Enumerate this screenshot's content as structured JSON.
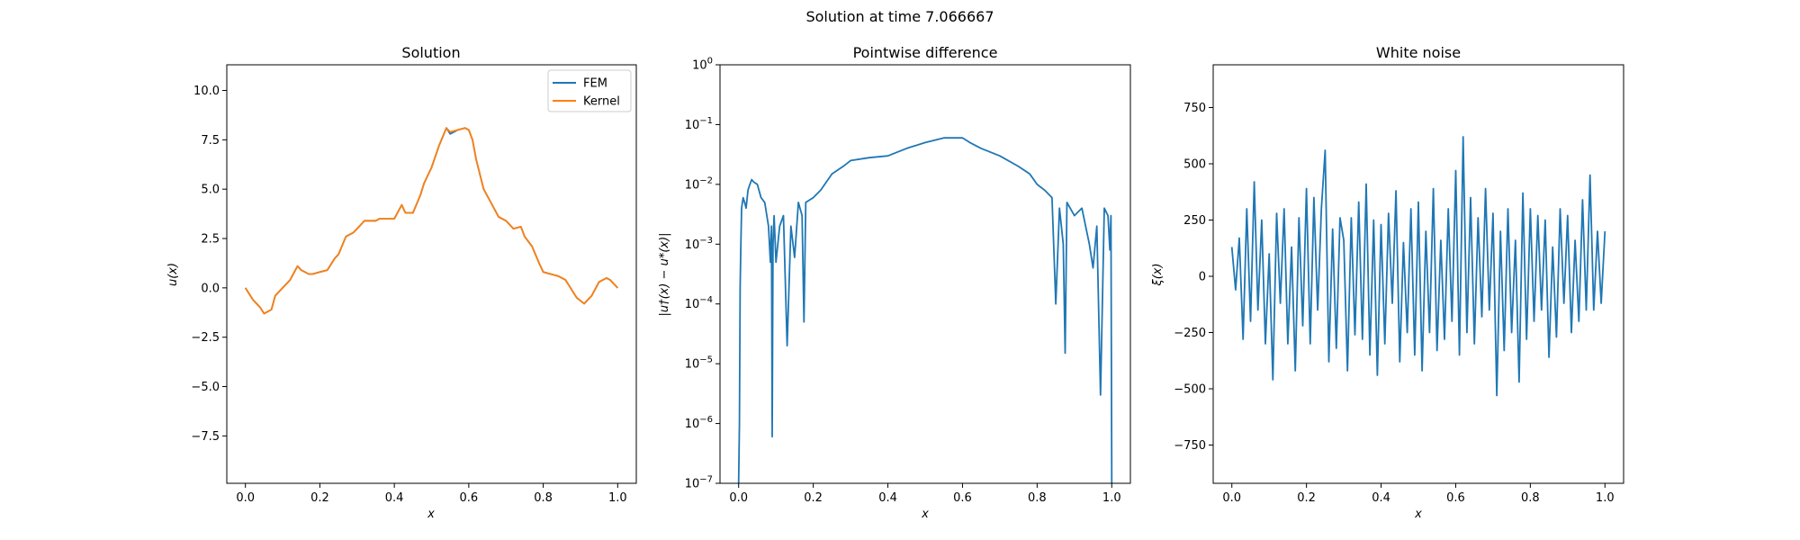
{
  "figure": {
    "suptitle": "Solution at time 7.066667"
  },
  "colors": {
    "fem": "#1f77b4",
    "kernel": "#ff7f0e",
    "axes": "#000000",
    "background": "#ffffff"
  },
  "chart_data": [
    {
      "type": "line",
      "title": "Solution",
      "xlabel": "x",
      "ylabel": "u(x)",
      "xlim": [
        -0.05,
        1.05
      ],
      "ylim": [
        -9.9,
        11.3
      ],
      "xticks": [
        0.0,
        0.2,
        0.4,
        0.6,
        0.8,
        1.0
      ],
      "xtick_labels": [
        "0.0",
        "0.2",
        "0.4",
        "0.6",
        "0.8",
        "1.0"
      ],
      "yticks": [
        -7.5,
        -5.0,
        -2.5,
        0.0,
        2.5,
        5.0,
        7.5,
        10.0
      ],
      "ytick_labels": [
        "−7.5",
        "−5.0",
        "−2.5",
        "0.0",
        "2.5",
        "5.0",
        "7.5",
        "10.0"
      ],
      "legend_position": "top-right",
      "grid": false,
      "series": [
        {
          "name": "FEM",
          "color": "#1f77b4",
          "x": [
            0.0,
            0.02,
            0.04,
            0.05,
            0.07,
            0.08,
            0.1,
            0.12,
            0.14,
            0.15,
            0.17,
            0.18,
            0.2,
            0.22,
            0.24,
            0.25,
            0.27,
            0.29,
            0.3,
            0.32,
            0.33,
            0.35,
            0.36,
            0.38,
            0.4,
            0.42,
            0.43,
            0.45,
            0.47,
            0.48,
            0.5,
            0.52,
            0.54,
            0.55,
            0.57,
            0.59,
            0.6,
            0.61,
            0.62,
            0.64,
            0.66,
            0.68,
            0.7,
            0.72,
            0.74,
            0.75,
            0.77,
            0.79,
            0.8,
            0.82,
            0.84,
            0.86,
            0.87,
            0.89,
            0.91,
            0.93,
            0.95,
            0.97,
            0.98,
            1.0
          ],
          "y": [
            0.0,
            -0.6,
            -1.0,
            -1.3,
            -1.1,
            -0.4,
            0.0,
            0.4,
            1.1,
            0.9,
            0.7,
            0.7,
            0.8,
            0.9,
            1.5,
            1.7,
            2.6,
            2.8,
            3.0,
            3.4,
            3.4,
            3.4,
            3.5,
            3.5,
            3.5,
            4.2,
            3.8,
            3.8,
            4.7,
            5.3,
            6.1,
            7.2,
            8.1,
            7.8,
            8.0,
            8.1,
            8.0,
            7.5,
            6.5,
            5.0,
            4.3,
            3.6,
            3.4,
            3.0,
            3.1,
            2.6,
            2.1,
            1.2,
            0.8,
            0.7,
            0.6,
            0.4,
            0.1,
            -0.5,
            -0.8,
            -0.4,
            0.3,
            0.5,
            0.4,
            0.0
          ]
        },
        {
          "name": "Kernel",
          "color": "#ff7f0e",
          "x": [
            0.0,
            0.02,
            0.04,
            0.05,
            0.07,
            0.08,
            0.1,
            0.12,
            0.14,
            0.15,
            0.17,
            0.18,
            0.2,
            0.22,
            0.24,
            0.25,
            0.27,
            0.29,
            0.3,
            0.32,
            0.33,
            0.35,
            0.36,
            0.38,
            0.4,
            0.42,
            0.43,
            0.45,
            0.47,
            0.48,
            0.5,
            0.52,
            0.54,
            0.55,
            0.57,
            0.59,
            0.6,
            0.61,
            0.62,
            0.64,
            0.66,
            0.68,
            0.7,
            0.72,
            0.74,
            0.75,
            0.77,
            0.79,
            0.8,
            0.82,
            0.84,
            0.86,
            0.87,
            0.89,
            0.91,
            0.93,
            0.95,
            0.97,
            0.98,
            1.0
          ],
          "y": [
            0.0,
            -0.6,
            -1.0,
            -1.3,
            -1.1,
            -0.4,
            0.0,
            0.4,
            1.1,
            0.9,
            0.7,
            0.7,
            0.8,
            0.9,
            1.5,
            1.7,
            2.6,
            2.8,
            3.0,
            3.4,
            3.4,
            3.4,
            3.5,
            3.5,
            3.5,
            4.2,
            3.8,
            3.8,
            4.7,
            5.3,
            6.1,
            7.2,
            8.1,
            7.9,
            8.0,
            8.1,
            8.0,
            7.5,
            6.5,
            5.0,
            4.3,
            3.6,
            3.4,
            3.0,
            3.1,
            2.6,
            2.1,
            1.2,
            0.8,
            0.7,
            0.6,
            0.4,
            0.1,
            -0.5,
            -0.8,
            -0.4,
            0.3,
            0.5,
            0.4,
            0.0
          ]
        }
      ]
    },
    {
      "type": "line",
      "title": "Pointwise difference",
      "xlabel": "x",
      "ylabel": "|u†(x) − u*(x)|",
      "yscale": "log",
      "xlim": [
        -0.05,
        1.05
      ],
      "ylim": [
        1e-07,
        1
      ],
      "xticks": [
        0.0,
        0.2,
        0.4,
        0.6,
        0.8,
        1.0
      ],
      "xtick_labels": [
        "0.0",
        "0.2",
        "0.4",
        "0.6",
        "0.8",
        "1.0"
      ],
      "yticks": [
        1e-07,
        1e-06,
        1e-05,
        0.0001,
        0.001,
        0.01,
        0.1,
        1
      ],
      "ytick_exponents": [
        "−7",
        "−6",
        "−5",
        "−4",
        "−3",
        "−2",
        "−1",
        "0"
      ],
      "grid": false,
      "series": [
        {
          "color": "#1f77b4",
          "x": [
            0.0,
            0.002,
            0.004,
            0.006,
            0.008,
            0.012,
            0.016,
            0.02,
            0.025,
            0.03,
            0.035,
            0.04,
            0.05,
            0.06,
            0.07,
            0.08,
            0.085,
            0.088,
            0.09,
            0.092,
            0.095,
            0.1,
            0.11,
            0.12,
            0.13,
            0.14,
            0.15,
            0.16,
            0.17,
            0.175,
            0.18,
            0.2,
            0.22,
            0.25,
            0.28,
            0.3,
            0.35,
            0.4,
            0.45,
            0.5,
            0.55,
            0.6,
            0.62,
            0.65,
            0.7,
            0.75,
            0.78,
            0.8,
            0.82,
            0.84,
            0.85,
            0.86,
            0.87,
            0.875,
            0.88,
            0.9,
            0.92,
            0.94,
            0.95,
            0.96,
            0.97,
            0.98,
            0.99,
            0.995,
            0.998,
            1.0
          ],
          "y": [
            1e-07,
            1e-06,
            0.0002,
            0.001,
            0.004,
            0.006,
            0.005,
            0.004,
            0.008,
            0.01,
            0.012,
            0.011,
            0.01,
            0.006,
            0.005,
            0.002,
            0.0005,
            0.002,
            6e-07,
            0.001,
            0.003,
            0.0005,
            0.002,
            0.003,
            2e-05,
            0.002,
            0.0006,
            0.005,
            0.003,
            5e-05,
            0.005,
            0.006,
            0.008,
            0.015,
            0.02,
            0.025,
            0.028,
            0.03,
            0.04,
            0.05,
            0.06,
            0.06,
            0.05,
            0.04,
            0.03,
            0.02,
            0.015,
            0.01,
            0.008,
            0.006,
            0.0001,
            0.004,
            0.001,
            1.5e-05,
            0.005,
            0.003,
            0.004,
            0.001,
            0.0004,
            0.002,
            3e-06,
            0.004,
            0.003,
            0.0008,
            0.003,
            1e-07
          ]
        }
      ]
    },
    {
      "type": "line",
      "title": "White noise",
      "xlabel": "x",
      "ylabel": "ξ(x)",
      "xlim": [
        -0.05,
        1.05
      ],
      "ylim": [
        -920,
        940
      ],
      "xticks": [
        0.0,
        0.2,
        0.4,
        0.6,
        0.8,
        1.0
      ],
      "xtick_labels": [
        "0.0",
        "0.2",
        "0.4",
        "0.6",
        "0.8",
        "1.0"
      ],
      "yticks": [
        -750,
        -500,
        -250,
        0,
        250,
        500,
        750
      ],
      "ytick_labels": [
        "−750",
        "−500",
        "−250",
        "0",
        "250",
        "500",
        "750"
      ],
      "grid": false,
      "series": [
        {
          "color": "#1f77b4",
          "x": [
            0.0,
            0.01,
            0.02,
            0.03,
            0.04,
            0.05,
            0.06,
            0.07,
            0.08,
            0.09,
            0.1,
            0.11,
            0.12,
            0.13,
            0.14,
            0.15,
            0.16,
            0.17,
            0.18,
            0.19,
            0.2,
            0.21,
            0.22,
            0.23,
            0.24,
            0.25,
            0.26,
            0.27,
            0.28,
            0.29,
            0.3,
            0.31,
            0.32,
            0.33,
            0.34,
            0.35,
            0.36,
            0.37,
            0.38,
            0.39,
            0.4,
            0.41,
            0.42,
            0.43,
            0.44,
            0.45,
            0.46,
            0.47,
            0.48,
            0.49,
            0.5,
            0.51,
            0.52,
            0.53,
            0.54,
            0.55,
            0.56,
            0.57,
            0.58,
            0.59,
            0.6,
            0.61,
            0.62,
            0.63,
            0.64,
            0.65,
            0.66,
            0.67,
            0.68,
            0.69,
            0.7,
            0.71,
            0.72,
            0.73,
            0.74,
            0.75,
            0.76,
            0.77,
            0.78,
            0.79,
            0.8,
            0.81,
            0.82,
            0.83,
            0.84,
            0.85,
            0.86,
            0.87,
            0.88,
            0.89,
            0.9,
            0.91,
            0.92,
            0.93,
            0.94,
            0.95,
            0.96,
            0.97,
            0.98,
            0.99,
            1.0
          ],
          "y": [
            130,
            -60,
            170,
            -280,
            300,
            -200,
            420,
            -150,
            250,
            -300,
            100,
            -460,
            280,
            -120,
            300,
            -300,
            130,
            -420,
            260,
            -220,
            390,
            -300,
            350,
            -150,
            300,
            560,
            -380,
            210,
            -320,
            260,
            160,
            -420,
            260,
            -260,
            330,
            -280,
            410,
            -350,
            250,
            -440,
            230,
            -300,
            280,
            -120,
            380,
            -380,
            150,
            -250,
            300,
            -350,
            330,
            -420,
            200,
            -250,
            390,
            -330,
            160,
            -280,
            300,
            -200,
            470,
            -350,
            620,
            -250,
            350,
            -300,
            260,
            -180,
            390,
            -150,
            280,
            -530,
            200,
            -330,
            300,
            -250,
            160,
            -470,
            370,
            -280,
            300,
            -200,
            270,
            -150,
            250,
            -360,
            130,
            -270,
            300,
            -120,
            270,
            -250,
            160,
            -200,
            340,
            -150,
            450,
            -150,
            200,
            -120,
            200
          ]
        }
      ]
    }
  ]
}
